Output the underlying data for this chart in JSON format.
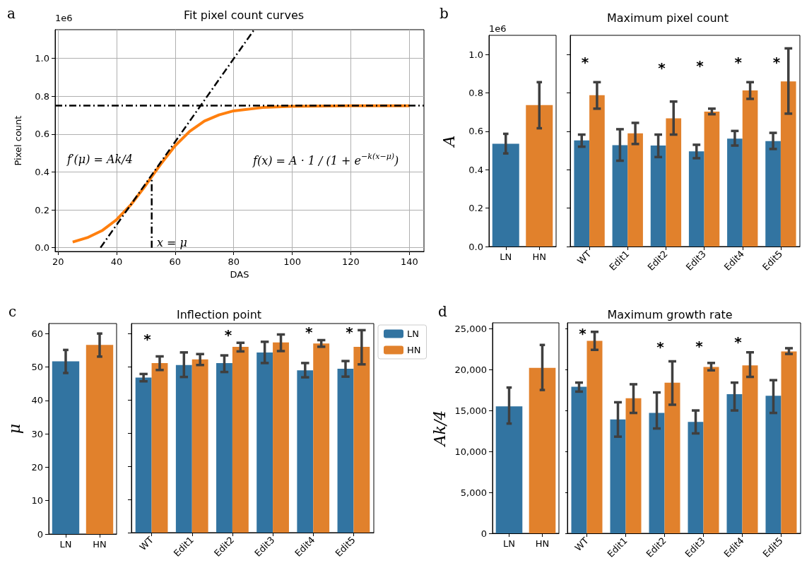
{
  "chart_data": [
    {
      "type": "line",
      "title": "Fit pixel count curves",
      "xlabel": "DAS",
      "ylabel": "Pixel count",
      "grid": true,
      "marker": "none",
      "xlim": [
        19,
        145
      ],
      "xticks": [
        20,
        40,
        60,
        80,
        100,
        120,
        140
      ],
      "ylim": [
        -0.02,
        1.152
      ],
      "yticks": [
        {
          "value": 0,
          "label": "0.0"
        },
        0.2,
        0.4,
        0.6,
        0.8,
        {
          "value": 1,
          "label": "1.0"
        }
      ],
      "series": [
        {
          "color": "#ff7f0e",
          "x": [
            25,
            30,
            35,
            40,
            45,
            50,
            52,
            55,
            60,
            65,
            70,
            75,
            80,
            90,
            100,
            120,
            140
          ],
          "values": [
            0.03,
            0.053,
            0.09,
            0.148,
            0.229,
            0.331,
            0.375,
            0.44,
            0.539,
            0.615,
            0.669,
            0.702,
            0.723,
            0.741,
            0.747,
            0.75,
            0.75
          ]
        },
        {
          "type": "line",
          "color": "#000000",
          "line_style": "dashed",
          "x": [
            34.5,
            86.9
          ],
          "values": [
            0,
            1.15
          ]
        },
        {
          "type": "line",
          "color": "#000000",
          "line_style": "dashed",
          "x": [
            52,
            52
          ],
          "values": [
            0,
            0.36
          ]
        }
      ],
      "ref_lines": [
        {
          "axis": "y",
          "value": 0.75,
          "color": "#000000",
          "line_style": "dashed"
        }
      ],
      "annotations": [
        "a",
        "1e6",
        "f′(μ) = Ak/4",
        "x = μ",
        "f(x) = A · 1 / (1 + e$^{−k(x−μ)}$)"
      ]
    },
    {
      "type": "bar",
      "ylabel": "A",
      "categories": [
        "LN",
        "HN"
      ],
      "values": [
        0.535,
        0.737
      ],
      "colors": [
        "#3274a1",
        "#e1812c"
      ],
      "errors": [
        [
          0.485,
          0.587
        ],
        [
          0.616,
          0.856
        ]
      ],
      "ylim": [
        0,
        1.1
      ],
      "yticks": [
        {
          "value": 0,
          "label": "0.0"
        },
        0.2,
        0.4,
        0.6,
        0.8,
        {
          "value": 1,
          "label": "1.0"
        }
      ],
      "annotations": [
        "b",
        "1e6"
      ]
    },
    {
      "type": "bar",
      "title": "Maximum pixel count",
      "categories": [
        "WT",
        "Edit1",
        "Edit2",
        "Edit3",
        "Edit4",
        "Edit5"
      ],
      "tick_labels": "x",
      "ylim": [
        0,
        1.1
      ],
      "yticks": [
        0,
        0.2,
        0.4,
        0.6,
        0.8,
        1
      ],
      "series": [
        {
          "color": "#3274a1",
          "values": [
            0.553,
            0.528,
            0.526,
            0.496,
            0.562,
            0.549
          ],
          "errors": [
            [
              0.52,
              0.583
            ],
            [
              0.447,
              0.611
            ],
            [
              0.466,
              0.583
            ],
            [
              0.46,
              0.53
            ],
            [
              0.526,
              0.602
            ],
            [
              0.508,
              0.592
            ]
          ]
        },
        {
          "color": "#e1812c",
          "values": [
            0.788,
            0.59,
            0.668,
            0.703,
            0.813,
            0.86
          ],
          "errors": [
            [
              0.718,
              0.856
            ],
            [
              0.534,
              0.644
            ],
            [
              0.583,
              0.755
            ],
            [
              0.689,
              0.718
            ],
            [
              0.769,
              0.856
            ],
            [
              0.692,
              1.032
            ]
          ]
        }
      ],
      "annotations": [
        "*",
        "*",
        "*",
        "*",
        "*"
      ]
    },
    {
      "type": "bar",
      "ylabel": "μ",
      "categories": [
        "LN",
        "HN"
      ],
      "values": [
        51.7,
        56.6
      ],
      "colors": [
        "#3274a1",
        "#e1812c"
      ],
      "errors": [
        [
          48.2,
          55.1
        ],
        [
          53.1,
          60
        ]
      ],
      "ylim": [
        0,
        63
      ],
      "yticks": [
        0,
        10,
        20,
        30,
        40,
        50,
        60
      ],
      "annotations": [
        "c"
      ]
    },
    {
      "type": "bar",
      "title": "Inflection point",
      "categories": [
        "WT",
        "Edit1",
        "Edit2",
        "Edit3",
        "Edit4",
        "Edit5"
      ],
      "tick_labels": "x",
      "legend": "top right",
      "ylim": [
        0,
        63
      ],
      "yticks": [
        0,
        10,
        20,
        30,
        40,
        50,
        60
      ],
      "series": [
        {
          "name": "LN",
          "color": "#3274a1",
          "values": [
            46.7,
            50.5,
            51.1,
            54.3,
            48.9,
            49.4
          ],
          "errors": [
            [
              45.6,
              47.8
            ],
            [
              46.9,
              54.3
            ],
            [
              48.4,
              53.4
            ],
            [
              51.1,
              57.5
            ],
            [
              46.8,
              51.1
            ],
            [
              47,
              51.7
            ]
          ]
        },
        {
          "name": "HN",
          "color": "#e1812c",
          "values": [
            51.1,
            52.2,
            56,
            57.3,
            57,
            56
          ],
          "errors": [
            [
              49,
              53.1
            ],
            [
              50.5,
              53.8
            ],
            [
              54.6,
              57.2
            ],
            [
              54.7,
              59.7
            ],
            [
              56,
              58
            ],
            [
              50.7,
              61
            ]
          ]
        }
      ],
      "annotations": [
        "*",
        "*",
        "*",
        "*"
      ]
    },
    {
      "type": "bar",
      "ylabel": "Ak/4",
      "categories": [
        "LN",
        "HN"
      ],
      "values": [
        15500,
        20200
      ],
      "colors": [
        "#3274a1",
        "#e1812c"
      ],
      "errors": [
        [
          13400,
          17800
        ],
        [
          17500,
          23000
        ]
      ],
      "ylim": [
        0,
        25700
      ],
      "yticks": [
        0,
        {
          "value": 5000,
          "label": "5,000"
        },
        {
          "value": 10000,
          "label": "10,000"
        },
        {
          "value": 15000,
          "label": "15,000"
        },
        {
          "value": 20000,
          "label": "20,000"
        },
        {
          "value": 25000,
          "label": "25,000"
        }
      ],
      "annotations": [
        "d"
      ]
    },
    {
      "type": "bar",
      "title": "Maximum growth rate",
      "categories": [
        "WT",
        "Edit1",
        "Edit2",
        "Edit3",
        "Edit4",
        "Edit5"
      ],
      "tick_labels": "x",
      "ylim": [
        0,
        25700
      ],
      "yticks": [
        0,
        5000,
        10000,
        15000,
        20000,
        25000
      ],
      "series": [
        {
          "color": "#3274a1",
          "values": [
            17900,
            13900,
            14700,
            13600,
            17000,
            16800
          ],
          "errors": [
            [
              17300,
              18400
            ],
            [
              11800,
              16000
            ],
            [
              12800,
              17200
            ],
            [
              12200,
              15000
            ],
            [
              15000,
              18400
            ],
            [
              14700,
              18700
            ]
          ]
        },
        {
          "color": "#e1812c",
          "values": [
            23500,
            16500,
            18400,
            20300,
            20500,
            22200
          ],
          "errors": [
            [
              22400,
              24600
            ],
            [
              14700,
              18200
            ],
            [
              15700,
              21000
            ],
            [
              19900,
              20800
            ],
            [
              19100,
              22100
            ],
            [
              21900,
              22600
            ]
          ]
        }
      ],
      "annotations": [
        "*",
        "*",
        "*",
        "*"
      ]
    }
  ]
}
